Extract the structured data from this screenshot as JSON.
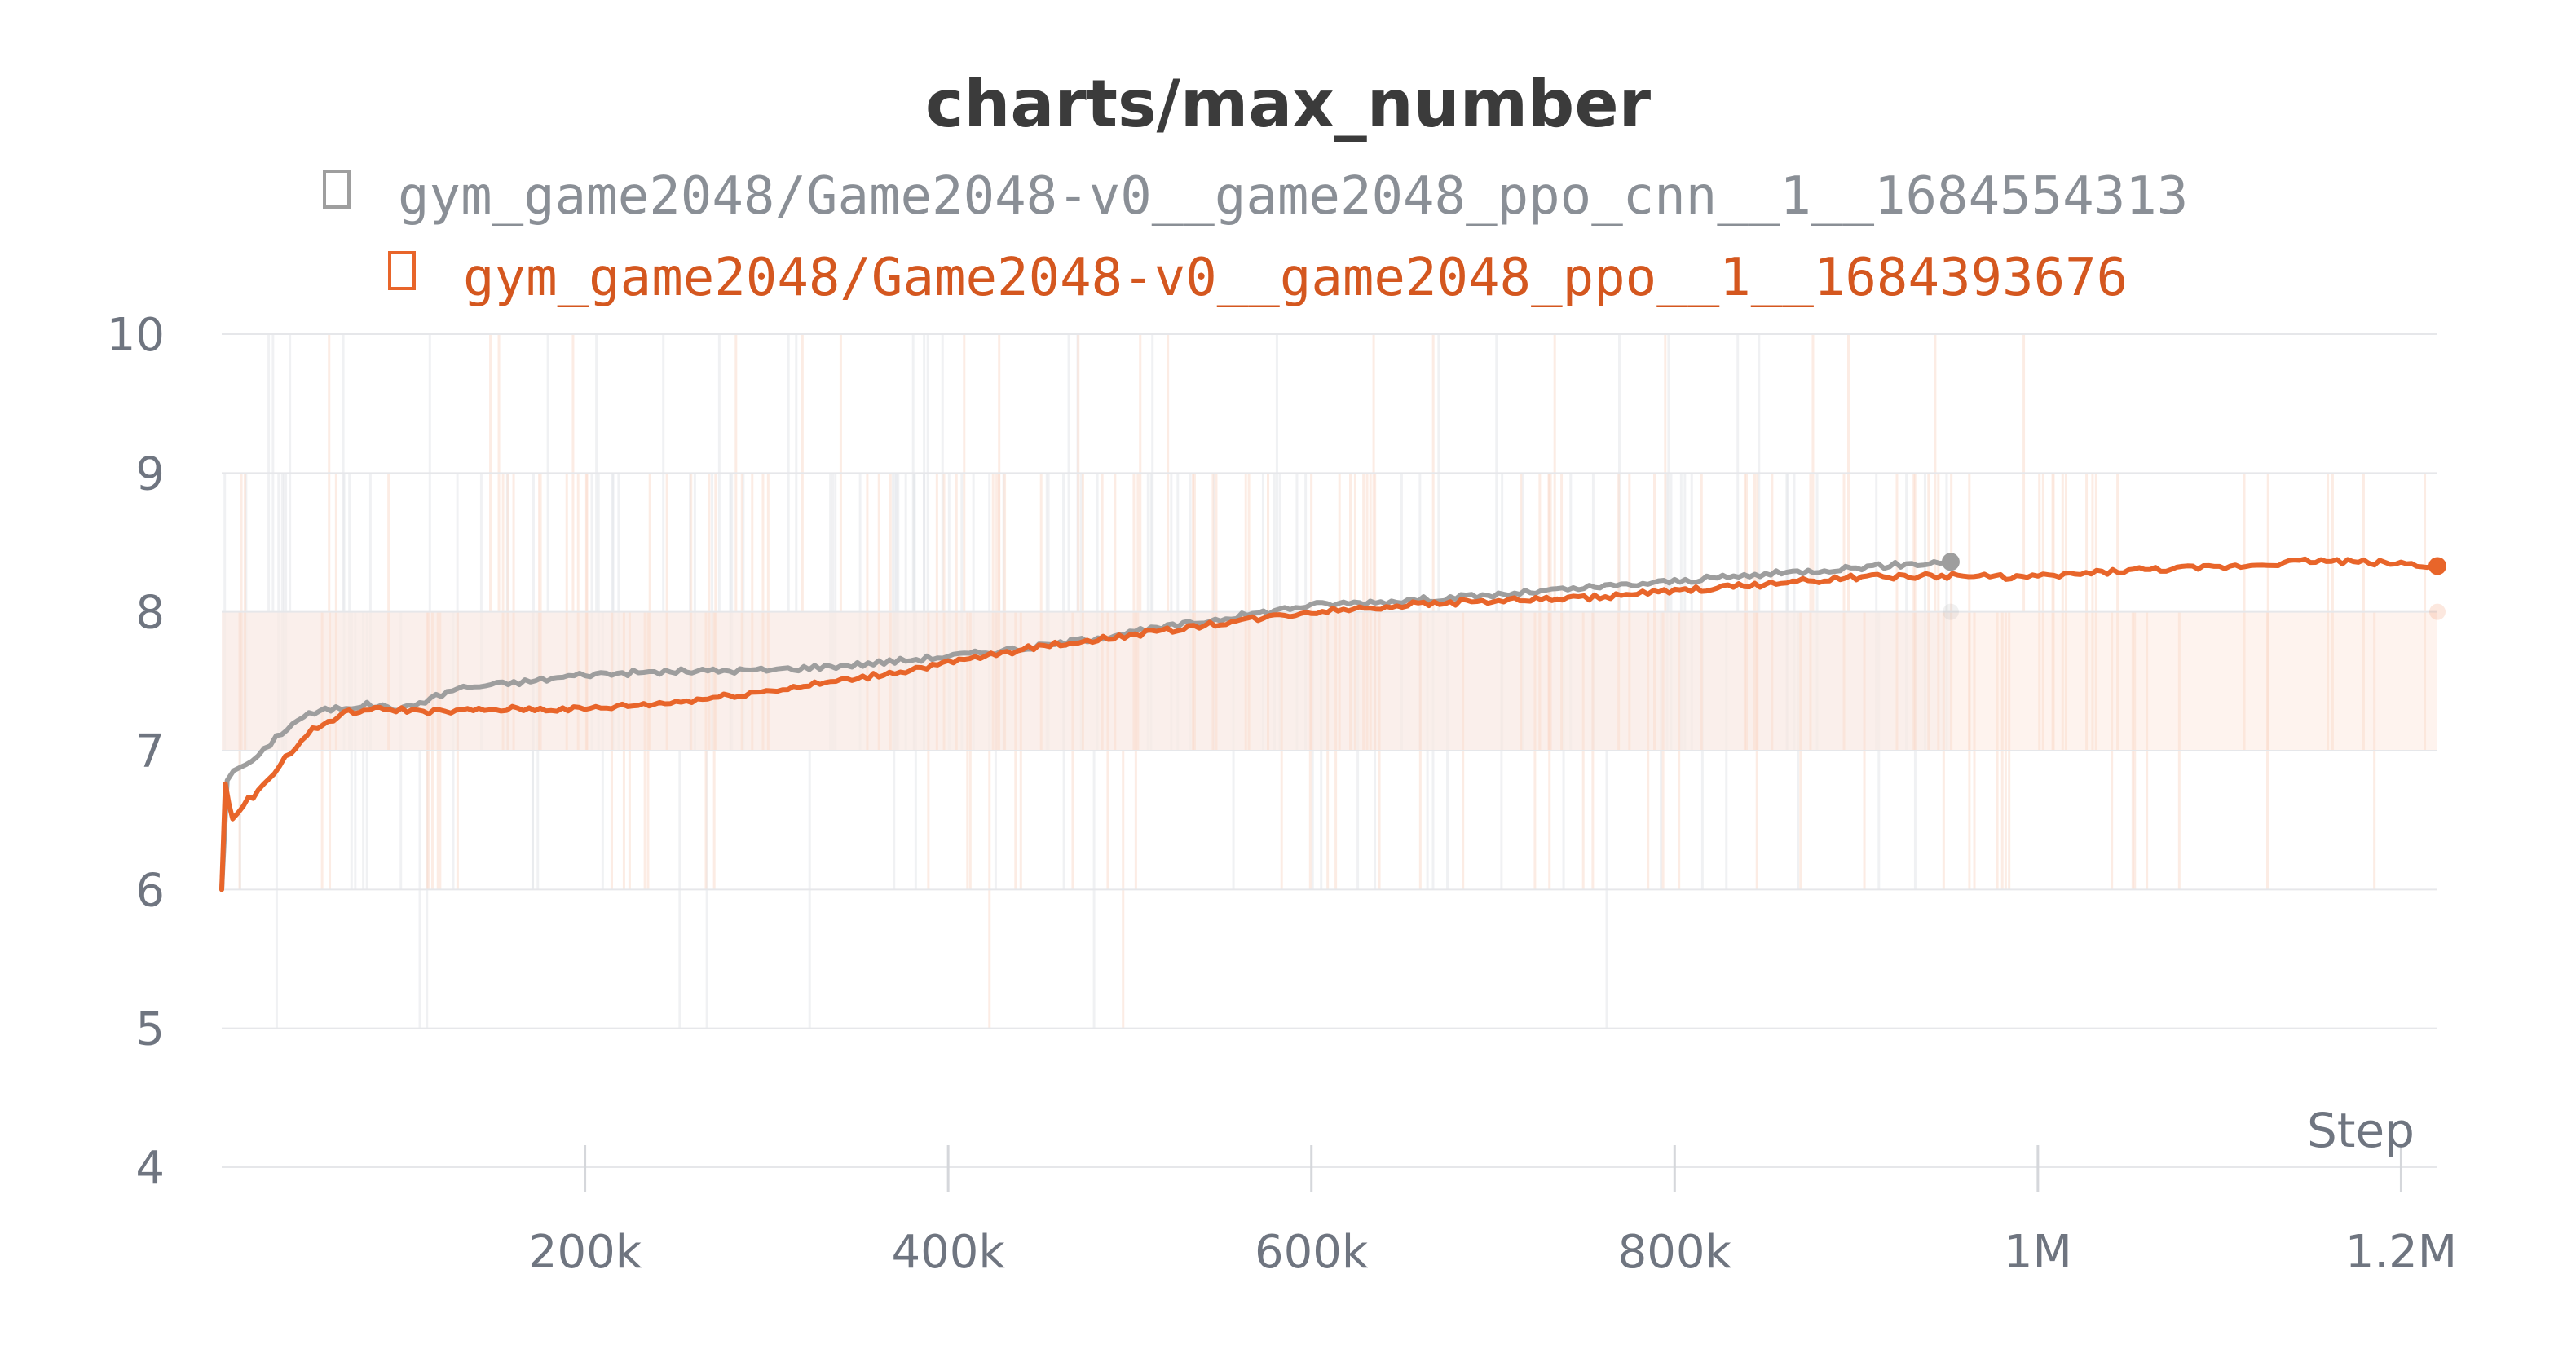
{
  "chart_data": {
    "type": "line",
    "title": "charts/max_number",
    "xlabel": "Step",
    "ylabel": "",
    "xlim": [
      0,
      1220000
    ],
    "ylim": [
      4,
      10
    ],
    "x_ticks": [
      200000,
      400000,
      600000,
      800000,
      1000000,
      1200000
    ],
    "x_tick_labels": [
      "200k",
      "400k",
      "600k",
      "800k",
      "1M",
      "1.2M"
    ],
    "y_ticks": [
      4,
      5,
      6,
      7,
      8,
      9,
      10
    ],
    "y_tick_labels": [
      "4",
      "5",
      "6",
      "7",
      "8",
      "9",
      "10"
    ],
    "grid": true,
    "legend_position": "top",
    "series": [
      {
        "name": "gym_game2048/Game2048-v0__game2048_ppo_cnn__1__1684554313",
        "color": "#9e9e9e",
        "legend_icon": "square-icon",
        "smoothed": [
          [
            0,
            6.0
          ],
          [
            3000,
            6.8
          ],
          [
            10000,
            6.88
          ],
          [
            20000,
            6.95
          ],
          [
            30000,
            7.1
          ],
          [
            45000,
            7.25
          ],
          [
            60000,
            7.3
          ],
          [
            80000,
            7.33
          ],
          [
            100000,
            7.3
          ],
          [
            130000,
            7.45
          ],
          [
            170000,
            7.5
          ],
          [
            200000,
            7.55
          ],
          [
            250000,
            7.57
          ],
          [
            300000,
            7.58
          ],
          [
            350000,
            7.62
          ],
          [
            400000,
            7.68
          ],
          [
            450000,
            7.75
          ],
          [
            500000,
            7.85
          ],
          [
            550000,
            7.95
          ],
          [
            600000,
            8.05
          ],
          [
            650000,
            8.08
          ],
          [
            700000,
            8.12
          ],
          [
            750000,
            8.17
          ],
          [
            800000,
            8.22
          ],
          [
            850000,
            8.27
          ],
          [
            900000,
            8.32
          ],
          [
            952000,
            8.36
          ]
        ],
        "last_value": 8.36,
        "last_raw_value": 8
      },
      {
        "name": "gym_game2048/Game2048-v0__game2048_ppo__1__1684393676",
        "color": "#e8652a",
        "legend_icon": "square-icon",
        "smoothed": [
          [
            0,
            6.0
          ],
          [
            2000,
            6.75
          ],
          [
            6000,
            6.5
          ],
          [
            12000,
            6.62
          ],
          [
            20000,
            6.7
          ],
          [
            35000,
            6.95
          ],
          [
            50000,
            7.15
          ],
          [
            70000,
            7.28
          ],
          [
            90000,
            7.3
          ],
          [
            120000,
            7.28
          ],
          [
            160000,
            7.3
          ],
          [
            200000,
            7.3
          ],
          [
            250000,
            7.35
          ],
          [
            300000,
            7.43
          ],
          [
            350000,
            7.52
          ],
          [
            400000,
            7.63
          ],
          [
            450000,
            7.75
          ],
          [
            500000,
            7.83
          ],
          [
            550000,
            7.92
          ],
          [
            600000,
            8.0
          ],
          [
            650000,
            8.05
          ],
          [
            700000,
            8.08
          ],
          [
            750000,
            8.1
          ],
          [
            800000,
            8.15
          ],
          [
            850000,
            8.2
          ],
          [
            900000,
            8.25
          ],
          [
            950000,
            8.26
          ],
          [
            1000000,
            8.25
          ],
          [
            1050000,
            8.3
          ],
          [
            1100000,
            8.32
          ],
          [
            1150000,
            8.37
          ],
          [
            1200000,
            8.35
          ],
          [
            1220000,
            8.33
          ]
        ],
        "last_value": 8.33,
        "last_raw_value": 8
      }
    ]
  }
}
